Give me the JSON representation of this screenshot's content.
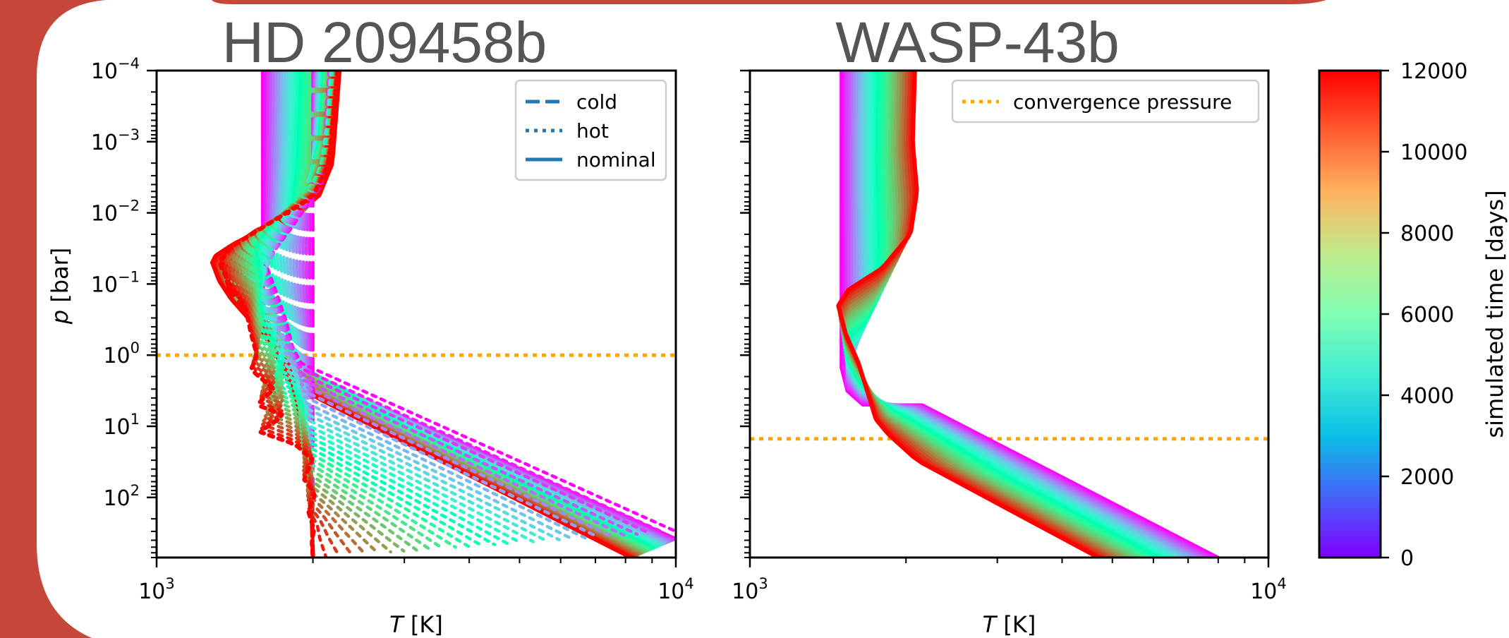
{
  "colors": {
    "frame_background": "#c4473a",
    "convergence_line": "#ffa500",
    "legend_line": "#1f77b4",
    "title_gray": "#555555"
  },
  "chart_data": [
    {
      "type": "line",
      "title": "HD 209458b",
      "xlabel": "T [K]",
      "ylabel": "p [bar]",
      "xscale": "log",
      "yscale": "log",
      "y_inverted": true,
      "xlim": [
        1000,
        10000
      ],
      "ylim": [
        700,
        0.0001
      ],
      "x_ticks": [
        {
          "value": 1000,
          "base": "10",
          "exp": "3"
        },
        {
          "value": 10000,
          "base": "10",
          "exp": "4"
        }
      ],
      "y_ticks": [
        {
          "value": 0.0001,
          "base": "10",
          "exp": "−4"
        },
        {
          "value": 0.001,
          "base": "10",
          "exp": "−3"
        },
        {
          "value": 0.01,
          "base": "10",
          "exp": "−2"
        },
        {
          "value": 0.1,
          "base": "10",
          "exp": "−1"
        },
        {
          "value": 1,
          "base": "10",
          "exp": "0"
        },
        {
          "value": 10,
          "base": "10",
          "exp": "1"
        },
        {
          "value": 100,
          "base": "10",
          "exp": "2"
        }
      ],
      "legend": {
        "placement": "top-right",
        "entries": [
          {
            "label": "cold",
            "style": "dashed"
          },
          {
            "label": "hot",
            "style": "dotted"
          },
          {
            "label": "nominal",
            "style": "solid"
          }
        ]
      },
      "convergence_pressure": 1,
      "families": [
        {
          "style": "solid",
          "initial": [
            [
              1600,
              0.0001
            ],
            [
              1600,
              0.04
            ],
            [
              1610,
              0.2
            ],
            [
              1650,
              0.6
            ],
            [
              1720,
              1.0
            ],
            [
              1800,
              1.4
            ],
            [
              10000,
              380
            ]
          ],
          "final": [
            [
              2250,
              0.0001
            ],
            [
              2180,
              0.002
            ],
            [
              2050,
              0.006
            ],
            [
              1620,
              0.016
            ],
            [
              1400,
              0.028
            ],
            [
              1300,
              0.04
            ],
            [
              1280,
              0.05
            ],
            [
              1320,
              0.09
            ],
            [
              1390,
              0.16
            ],
            [
              1500,
              0.3
            ],
            [
              1650,
              0.6
            ],
            [
              1800,
              2.5
            ],
            [
              8200,
              700
            ]
          ]
        },
        {
          "style": "dashed",
          "initial": [
            [
              2000,
              0.0001
            ],
            [
              2000,
              700
            ]
          ],
          "final": [
            [
              2200,
              0.0001
            ],
            [
              2120,
              0.002
            ],
            [
              1960,
              0.007
            ],
            [
              1550,
              0.018
            ],
            [
              1330,
              0.04
            ],
            [
              1380,
              0.12
            ],
            [
              1580,
              0.4
            ],
            [
              1680,
              0.9
            ],
            [
              1800,
              1.3
            ],
            [
              1870,
              7
            ],
            [
              1980,
              40
            ],
            [
              2000,
              700
            ]
          ]
        },
        {
          "style": "dotted",
          "initial": [
            [
              2150,
              0.0001
            ],
            [
              2080,
              0.004
            ],
            [
              1800,
              0.018
            ],
            [
              1620,
              0.05
            ],
            [
              1700,
              0.13
            ],
            [
              1780,
              0.35
            ],
            [
              1830,
              0.8
            ],
            [
              1900,
              1.3
            ],
            [
              10000,
              300
            ]
          ],
          "final": [
            [
              2230,
              0.0001
            ],
            [
              2150,
              0.002
            ],
            [
              2000,
              0.006
            ],
            [
              1600,
              0.016
            ],
            [
              1390,
              0.03
            ],
            [
              1320,
              0.05
            ],
            [
              1380,
              0.1
            ],
            [
              1480,
              0.2
            ],
            [
              1520,
              0.5
            ],
            [
              1560,
              1.0
            ],
            [
              1520,
              1.6
            ],
            [
              1680,
              3
            ],
            [
              1560,
              5
            ],
            [
              1760,
              7
            ],
            [
              1580,
              12
            ],
            [
              1850,
              18
            ],
            [
              2000,
              30
            ],
            [
              1920,
              55
            ],
            [
              2020,
              90
            ],
            [
              1960,
              160
            ],
            [
              2010,
              280
            ],
            [
              1990,
              420
            ],
            [
              2000,
              700
            ]
          ]
        }
      ]
    },
    {
      "type": "line",
      "title": "WASP-43b",
      "xlabel": "T [K]",
      "ylabel": "",
      "xscale": "log",
      "yscale": "log",
      "y_inverted": true,
      "xlim": [
        1000,
        10000
      ],
      "ylim": [
        700,
        0.0001
      ],
      "x_ticks": [
        {
          "value": 1000,
          "base": "10",
          "exp": "3"
        },
        {
          "value": 10000,
          "base": "10",
          "exp": "4"
        }
      ],
      "legend": {
        "placement": "top-right",
        "entries": [
          {
            "label": "convergence pressure",
            "style": "dotted",
            "color": "#ffa500"
          }
        ]
      },
      "convergence_pressure": 15,
      "families": [
        {
          "style": "solid",
          "initial": [
            [
              1500,
              0.0001
            ],
            [
              1500,
              1.5
            ],
            [
              1540,
              3.2
            ],
            [
              1650,
              5
            ],
            [
              2150,
              5
            ],
            [
              8000,
              700
            ]
          ],
          "final": [
            [
              2080,
              0.0001
            ],
            [
              2060,
              0.001
            ],
            [
              2100,
              0.005
            ],
            [
              2040,
              0.02
            ],
            [
              1800,
              0.06
            ],
            [
              1550,
              0.12
            ],
            [
              1480,
              0.2
            ],
            [
              1530,
              0.5
            ],
            [
              1620,
              1.3
            ],
            [
              1700,
              4
            ],
            [
              1750,
              8
            ],
            [
              1850,
              13
            ],
            [
              2100,
              30
            ],
            [
              4700,
              700
            ]
          ]
        }
      ]
    }
  ],
  "colorbar": {
    "label": "simulated time [days]",
    "min": 0,
    "max": 12000,
    "ticks": [
      0,
      2000,
      4000,
      6000,
      8000,
      10000,
      12000
    ],
    "colormap": "rainbow"
  }
}
